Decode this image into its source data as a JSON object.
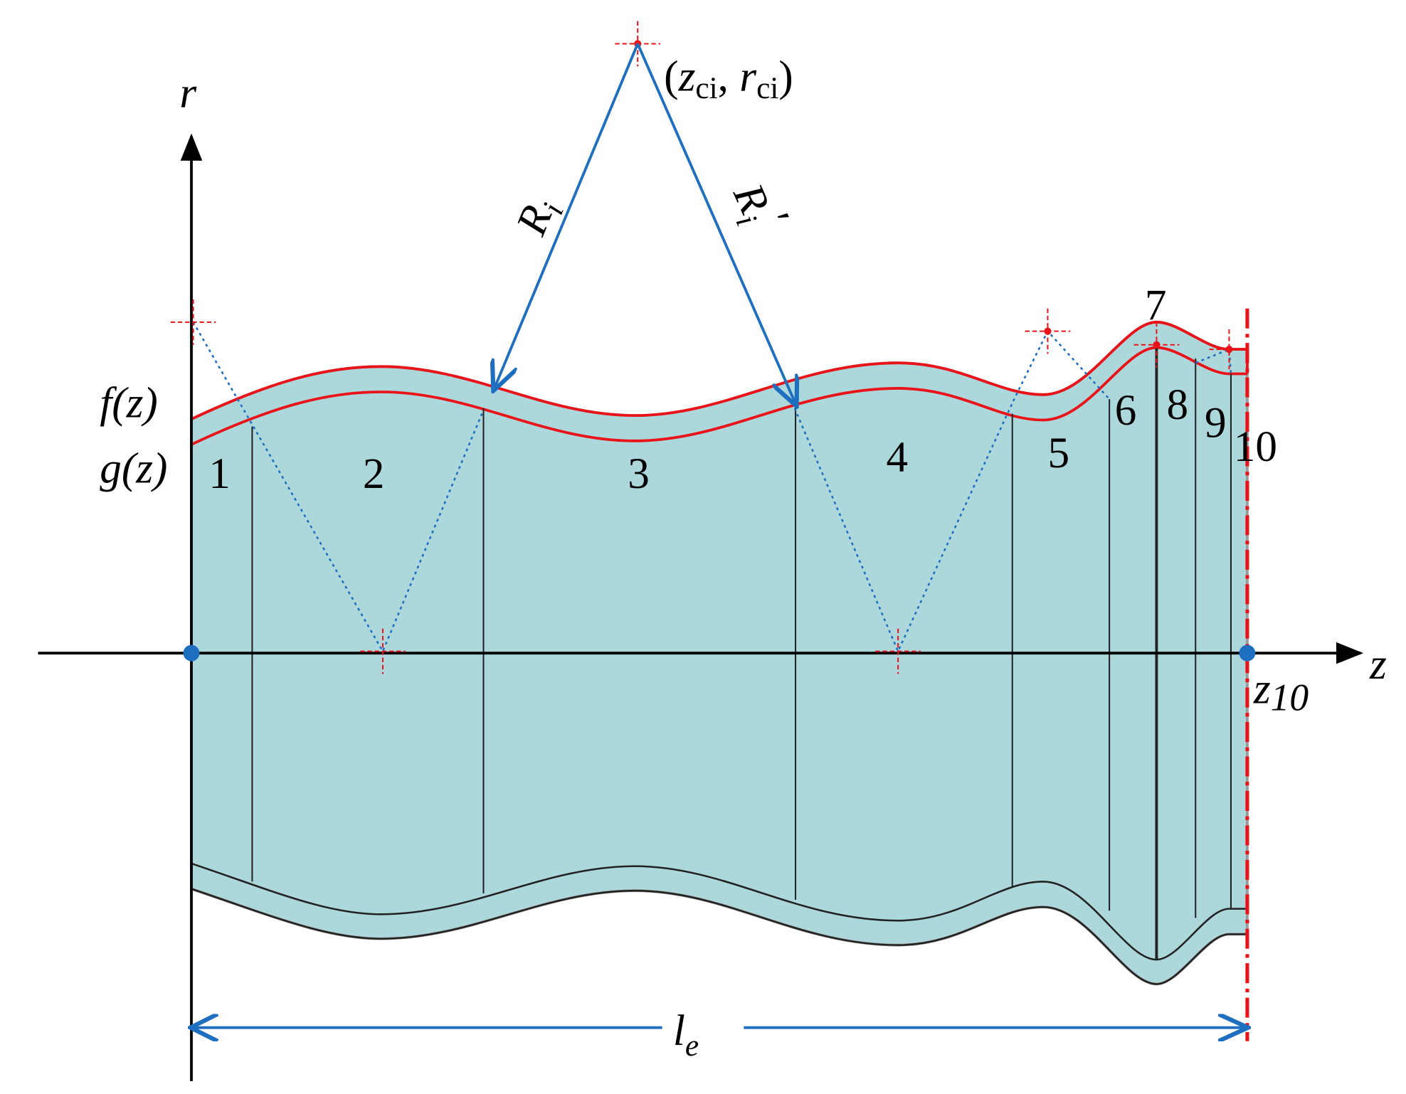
{
  "axes": {
    "r": "r",
    "z": "z"
  },
  "profiles": {
    "outer": "f(z)",
    "inner": "g(z)"
  },
  "sections": [
    "1",
    "2",
    "3",
    "4",
    "5",
    "6",
    "7",
    "8",
    "9",
    "10"
  ],
  "center": {
    "open": "(",
    "z": "z",
    "z_sub": "ci",
    "sep": ", ",
    "r": "r",
    "r_sub": "ci",
    "close": ")"
  },
  "radius": {
    "symbol": "R",
    "sub": "i"
  },
  "radius_prime": {
    "symbol": "R",
    "sub": "i",
    "prime": "′"
  },
  "end_point": {
    "symbol": "z",
    "sub": "10"
  },
  "length": {
    "symbol": "l",
    "sub": "e"
  }
}
